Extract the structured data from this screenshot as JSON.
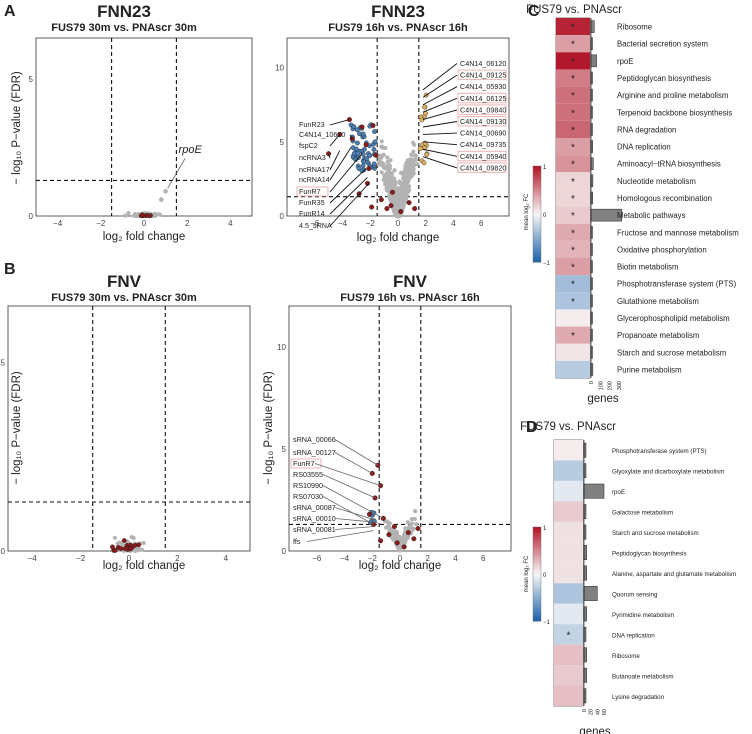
{
  "panels": {
    "A": {
      "letter": "A",
      "title": "FNN23",
      "left": {
        "subtitle": "FUS79 30m vs. PNAscr 30m",
        "xlabel": "log₂ fold change",
        "ylabel": "− log₁₀ P−value (FDR)",
        "xticks": [
          "−4",
          "−2",
          "0",
          "2",
          "4"
        ],
        "yticks": [
          "0",
          "5"
        ],
        "annotation": "rpoE"
      },
      "right": {
        "subtitle": "FUS79 16h vs. PNAscr 16h",
        "xlabel": "log₂ fold change",
        "xticks": [
          "−6",
          "−4",
          "−2",
          "0",
          "2",
          "4",
          "6"
        ],
        "yticks": [
          "0",
          "5",
          "10"
        ],
        "left_labels": [
          "FunR23",
          "C4N14_10620",
          "fspC2",
          "ncRNA3",
          "ncRNA17",
          "ncRNA14",
          "FunR7",
          "FunR35",
          "FunR14",
          "4.5_sRNA"
        ],
        "right_labels": [
          "C4N14_06120",
          "C4N14_09125",
          "C4N14_05930",
          "C4N14_06125",
          "C4N14_09840",
          "C4N14_09130",
          "C4N14_00690",
          "C4N14_09735",
          "C4N14_05940",
          "C4N14_09820"
        ]
      }
    },
    "B": {
      "letter": "B",
      "title": "FNV",
      "left": {
        "subtitle": "FUS79 30m vs. PNAscr 30m",
        "xlabel": "log₂ fold change",
        "ylabel": "− log₁₀ P−value (FDR)",
        "xticks": [
          "−4",
          "−2",
          "0",
          "2",
          "4"
        ],
        "yticks": [
          "0",
          "5"
        ]
      },
      "right": {
        "subtitle": "FUS79 16h vs. PNAscr 16h",
        "xlabel": "log₂ fold change",
        "ylabel": "− log₁₀ P−value (FDR)",
        "xticks": [
          "−6",
          "−4",
          "−2",
          "0",
          "2",
          "4",
          "6"
        ],
        "yticks": [
          "0",
          "5",
          "10"
        ],
        "left_labels": [
          "sRNA_00066",
          "sRNA_00127",
          "FunR7",
          "RS03555",
          "RS10990",
          "RS07030",
          "sRNA_00087",
          "sRNA_00010",
          "sRNA_00081",
          "ffs"
        ]
      }
    },
    "C": {
      "letter": "C",
      "title": "FUS79 vs. PNAscr",
      "legend_title": "mean log₂ FC",
      "legend_ticks": [
        "1",
        "0",
        "−1"
      ],
      "xlabel": "genes",
      "xticks": [
        "0",
        "100",
        "200",
        "300"
      ]
    },
    "D": {
      "letter": "D",
      "title": "FUS79 vs. PNAscr",
      "legend_title": "mean log₂ FC",
      "legend_ticks": [
        "1",
        "0",
        "−1"
      ],
      "xlabel": "genes",
      "xticks": [
        "0",
        "20",
        "40",
        "60"
      ]
    }
  },
  "colors": {
    "background_points": "#b3b3b3",
    "srna_points": "#8b1a1a",
    "down_points": "#4a7fb5",
    "up_points": "#e0b060",
    "heat_high": "#b2182b",
    "heat_low": "#2166ac",
    "bar_fill": "#808080",
    "label_box": "#e8b4b4"
  },
  "chart_data": [
    {
      "id": "A-left",
      "type": "scatter",
      "title": "FNN23",
      "subtitle": "FUS79 30m vs. PNAscr 30m",
      "xlabel": "log2 fold change",
      "ylabel": "− log10 P−value (FDR)",
      "xlim": [
        -5,
        5
      ],
      "ylim": [
        0,
        6.5
      ],
      "thresholds": {
        "x": [
          -1.5,
          1.5
        ],
        "y": 1.3
      },
      "highlight": [
        {
          "label": "rpoE",
          "x": 1.0,
          "y": 0.9
        }
      ]
    },
    {
      "id": "A-right",
      "type": "scatter",
      "title": "FNN23",
      "subtitle": "FUS79 16h vs. PNAscr 16h",
      "xlabel": "log2 fold change",
      "ylabel": "− log10 P−value (FDR)",
      "xlim": [
        -8,
        8
      ],
      "ylim": [
        0,
        12
      ],
      "thresholds": {
        "x": [
          -1.5,
          1.5
        ],
        "y": 1.3
      }
    },
    {
      "id": "B-left",
      "type": "scatter",
      "title": "FNV",
      "subtitle": "FUS79 30m vs. PNAscr 30m",
      "xlabel": "log2 fold change",
      "ylabel": "− log10 P−value (FDR)",
      "xlim": [
        -5,
        5
      ],
      "ylim": [
        0,
        6.5
      ],
      "thresholds": {
        "x": [
          -1.5,
          1.5
        ],
        "y": 1.3
      }
    },
    {
      "id": "B-right",
      "type": "scatter",
      "title": "FNV",
      "subtitle": "FUS79 16h vs. PNAscr 16h",
      "xlabel": "log2 fold change",
      "ylabel": "− log10 P−value (FDR)",
      "xlim": [
        -8,
        8
      ],
      "ylim": [
        0,
        12
      ],
      "thresholds": {
        "x": [
          -1.5,
          1.5
        ],
        "y": 1.3
      }
    },
    {
      "id": "C",
      "type": "heatmap",
      "title": "FUS79 vs. PNAscr",
      "xlabel": "genes",
      "legend_title": "mean log2 FC",
      "color_range": [
        -1,
        1
      ],
      "bar_xlim": [
        0,
        300
      ],
      "rows": [
        {
          "pathway": "Ribosome",
          "fc": 0.95,
          "sig": true,
          "genes": 35
        },
        {
          "pathway": "Bacterial secretion system",
          "fc": 0.4,
          "sig": true,
          "genes": 12
        },
        {
          "pathway": "rpoE",
          "fc": 1.0,
          "sig": true,
          "genes": 60
        },
        {
          "pathway": "Peptidoglycan biosynthesis",
          "fc": 0.55,
          "sig": true,
          "genes": 12
        },
        {
          "pathway": "Arginine and proline metabolism",
          "fc": 0.6,
          "sig": true,
          "genes": 14
        },
        {
          "pathway": "Terpenoid backbone biosynthesis",
          "fc": 0.6,
          "sig": true,
          "genes": 10
        },
        {
          "pathway": "RNA degradation",
          "fc": 0.65,
          "sig": true,
          "genes": 12
        },
        {
          "pathway": "DNA replication",
          "fc": 0.4,
          "sig": true,
          "genes": 18
        },
        {
          "pathway": "Aminoacyl−tRNA biosynthesis",
          "fc": 0.45,
          "sig": true,
          "genes": 25
        },
        {
          "pathway": "Nucleotide metabolism",
          "fc": 0.15,
          "sig": true,
          "genes": 20
        },
        {
          "pathway": "Homologous recombination",
          "fc": 0.15,
          "sig": true,
          "genes": 18
        },
        {
          "pathway": "Metabolic pathways",
          "fc": 0.2,
          "sig": true,
          "genes": 330
        },
        {
          "pathway": "Fructose and mannose metabolism",
          "fc": 0.35,
          "sig": true,
          "genes": 12
        },
        {
          "pathway": "Oxidative phosphorylation",
          "fc": 0.3,
          "sig": true,
          "genes": 14
        },
        {
          "pathway": "Biotin metabolism",
          "fc": 0.4,
          "sig": true,
          "genes": 8
        },
        {
          "pathway": "Phosphotransferase system (PTS)",
          "fc": -0.4,
          "sig": true,
          "genes": 16
        },
        {
          "pathway": "Glutathione metabolism",
          "fc": -0.35,
          "sig": true,
          "genes": 8
        },
        {
          "pathway": "Glycerophospholipid metabolism",
          "fc": 0.05,
          "sig": false,
          "genes": 10
        },
        {
          "pathway": "Propanoate metabolism",
          "fc": 0.35,
          "sig": true,
          "genes": 8
        },
        {
          "pathway": "Starch and sucrose metabolism",
          "fc": 0.08,
          "sig": false,
          "genes": 6
        },
        {
          "pathway": "Purine metabolism",
          "fc": -0.3,
          "sig": false,
          "genes": 20
        }
      ]
    },
    {
      "id": "D",
      "type": "heatmap",
      "title": "FUS79 vs. PNAscr",
      "xlabel": "genes",
      "legend_title": "mean log2 FC",
      "color_range": [
        -1,
        1
      ],
      "bar_xlim": [
        0,
        60
      ],
      "rows": [
        {
          "pathway": "Phosphotransferase system (PTS)",
          "fc": 0.05,
          "sig": false,
          "genes": 6
        },
        {
          "pathway": "Glyoxylate and dicarboxylate metabolism",
          "fc": -0.3,
          "sig": false,
          "genes": 6
        },
        {
          "pathway": "rpoE",
          "fc": -0.1,
          "sig": false,
          "genes": 60
        },
        {
          "pathway": "Galactose metabolism",
          "fc": 0.2,
          "sig": false,
          "genes": 6
        },
        {
          "pathway": "Starch and sucrose metabolism",
          "fc": 0.1,
          "sig": false,
          "genes": 6
        },
        {
          "pathway": "Peptidoglycan biosynthesis",
          "fc": 0.1,
          "sig": false,
          "genes": 8
        },
        {
          "pathway": "Alanine, aspartate and glutamate metabolism",
          "fc": 0.1,
          "sig": false,
          "genes": 8
        },
        {
          "pathway": "Quorum sensing",
          "fc": -0.35,
          "sig": false,
          "genes": 40
        },
        {
          "pathway": "Pyrimidine metabolism",
          "fc": -0.1,
          "sig": false,
          "genes": 8
        },
        {
          "pathway": "DNA replication",
          "fc": -0.25,
          "sig": true,
          "genes": 6
        },
        {
          "pathway": "Ribosome",
          "fc": 0.25,
          "sig": false,
          "genes": 8
        },
        {
          "pathway": "Butanoate metabolism",
          "fc": 0.2,
          "sig": false,
          "genes": 8
        },
        {
          "pathway": "Lysine degradation",
          "fc": 0.25,
          "sig": false,
          "genes": 6
        }
      ]
    }
  ]
}
